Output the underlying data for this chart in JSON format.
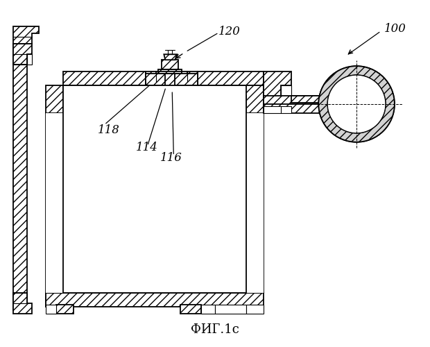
{
  "title": "ФИГ.1с",
  "bg": "#ffffff",
  "lc": "#000000",
  "title_fs": 13,
  "label_fs": 12
}
